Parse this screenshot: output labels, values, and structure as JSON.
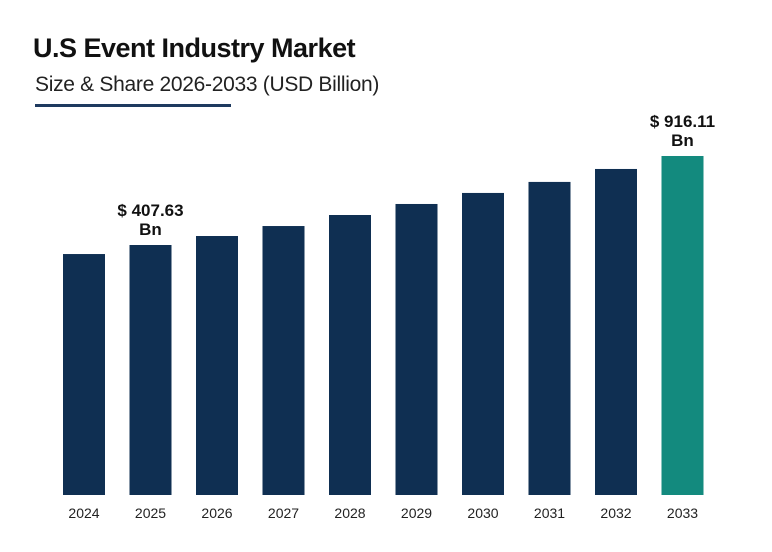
{
  "chart_data": {
    "type": "bar",
    "title": "U.S Event Industry Market",
    "subtitle": "Size & Share 2026-2033 (USD Billion)",
    "xlabel": "",
    "ylabel": "",
    "grid": false,
    "categories": [
      "2024",
      "2025",
      "2026",
      "2027",
      "2028",
      "2029",
      "2030",
      "2031",
      "2032",
      "2033"
    ],
    "values": [
      356,
      407.63,
      459,
      516,
      579,
      642,
      705,
      768,
      842,
      916.11
    ],
    "data_labels": {
      "2025": {
        "line1": "$ 407.63",
        "line2": "Bn"
      },
      "2033": {
        "line1": "$ 916.11",
        "line2": "Bn"
      }
    },
    "colors": {
      "default": "#0f2f52",
      "highlight": "#138a7e",
      "underline": "#1e3a5f"
    },
    "highlight_category": "2033"
  }
}
